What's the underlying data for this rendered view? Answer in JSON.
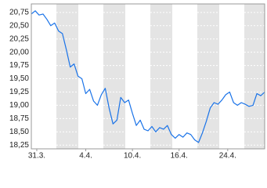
{
  "chart_data": {
    "type": "line",
    "x": [
      0,
      1,
      2,
      3,
      4,
      5,
      6,
      7,
      8,
      9,
      10,
      11,
      12,
      13,
      14,
      15,
      16,
      17,
      18,
      19,
      20,
      21,
      22,
      23,
      24,
      25,
      26,
      27,
      28,
      29,
      30,
      31,
      32,
      33,
      34,
      35,
      36,
      37,
      38,
      39,
      40,
      41,
      42,
      43,
      44,
      45,
      46,
      47,
      48,
      49,
      50,
      51,
      52,
      53,
      54,
      55,
      56,
      57,
      58,
      59,
      60
    ],
    "series": [
      {
        "color": "#1a73e8",
        "values": [
          20.72,
          20.78,
          20.7,
          20.72,
          20.62,
          20.5,
          20.55,
          20.4,
          20.35,
          20.05,
          19.72,
          19.78,
          19.55,
          19.5,
          19.22,
          19.3,
          19.08,
          19.0,
          19.2,
          19.32,
          18.95,
          18.65,
          18.72,
          19.15,
          19.05,
          19.1,
          18.85,
          18.62,
          18.72,
          18.55,
          18.52,
          18.6,
          18.5,
          18.58,
          18.55,
          18.62,
          18.45,
          18.38,
          18.45,
          18.4,
          18.48,
          18.45,
          18.35,
          18.3,
          18.48,
          18.7,
          18.95,
          19.05,
          19.02,
          19.1,
          19.2,
          19.25,
          19.05,
          19.0,
          19.05,
          19.02,
          18.98,
          19.0,
          19.22,
          19.18,
          19.25
        ]
      }
    ],
    "xlim": [
      0,
      60
    ],
    "xticks": [
      {
        "value": 1.4,
        "label": "31.3."
      },
      {
        "value": 14,
        "label": "4.4."
      },
      {
        "value": 26,
        "label": "10.4."
      },
      {
        "value": 38,
        "label": "16.4."
      },
      {
        "value": 50.5,
        "label": "24.4."
      }
    ],
    "ylim": [
      18.18,
      20.91
    ],
    "yticks": [
      {
        "value": 18.25,
        "label": "18,25"
      },
      {
        "value": 18.5,
        "label": "18,50"
      },
      {
        "value": 18.75,
        "label": "18,75"
      },
      {
        "value": 19,
        "label": "19,00"
      },
      {
        "value": 19.25,
        "label": "19,25"
      },
      {
        "value": 19.5,
        "label": "19,50"
      },
      {
        "value": 19.75,
        "label": "19,75"
      },
      {
        "value": 20,
        "label": "20,00"
      },
      {
        "value": 20.25,
        "label": "20,25"
      },
      {
        "value": 20.5,
        "label": "20,50"
      },
      {
        "value": 20.75,
        "label": "20,75"
      }
    ],
    "grid": true
  }
}
